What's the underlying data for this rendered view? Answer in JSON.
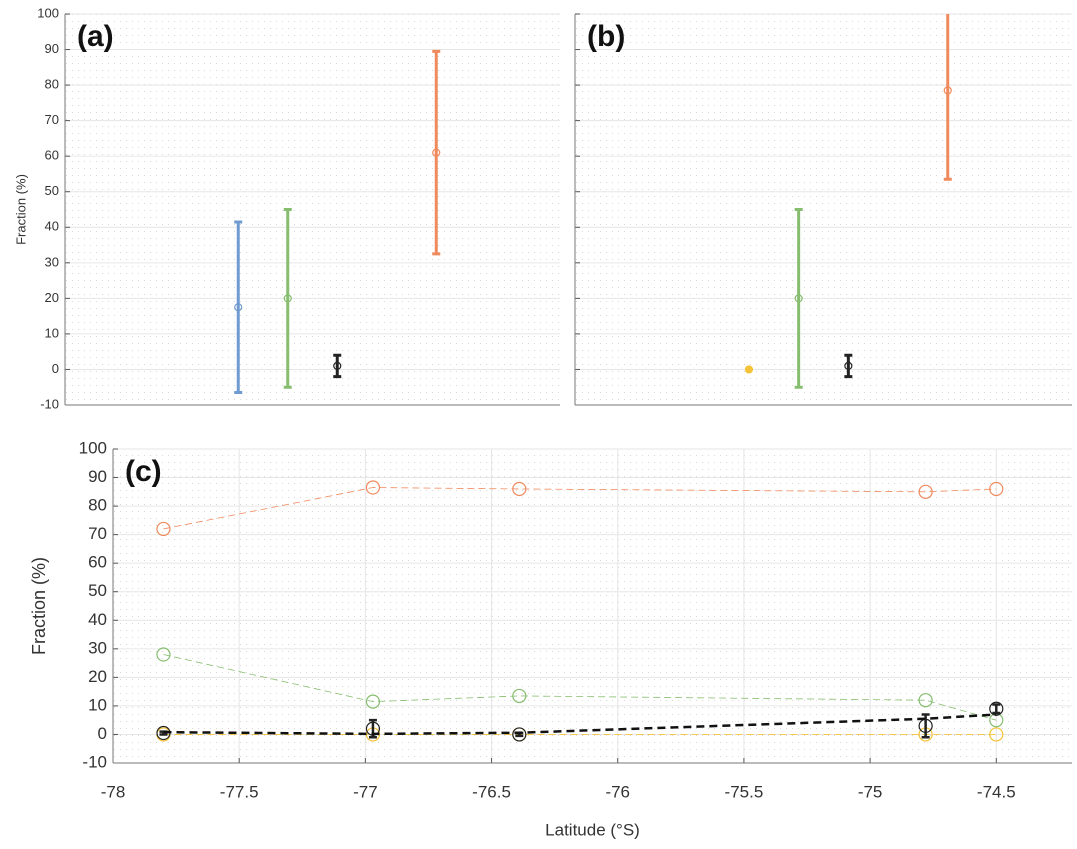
{
  "chart_data": [
    {
      "type": "errorbar",
      "title": "(a)",
      "ylabel": "Fraction (%)",
      "xlim": [
        0,
        10
      ],
      "ylim": [
        -10,
        100
      ],
      "yticks": [
        -10,
        0,
        10,
        20,
        30,
        40,
        50,
        60,
        70,
        80,
        90,
        100
      ],
      "grid": true,
      "series": [
        {
          "color": "#6f9bd1",
          "x": [
            3.5
          ],
          "values": [
            17.5
          ],
          "errors": [
            24
          ]
        },
        {
          "color": "#86bd6e",
          "x": [
            4.5
          ],
          "values": [
            20
          ],
          "errors": [
            25
          ]
        },
        {
          "color": "#222222",
          "x": [
            5.5
          ],
          "values": [
            1
          ],
          "errors": [
            3
          ]
        },
        {
          "color": "#f08a5d",
          "x": [
            7.5
          ],
          "values": [
            61
          ],
          "errors": [
            28.5
          ]
        }
      ]
    },
    {
      "type": "errorbar",
      "title": "(b)",
      "ytick_labels": false,
      "xlim": [
        0,
        10
      ],
      "ylim": [
        -10,
        100
      ],
      "yticks": [
        -10,
        0,
        10,
        20,
        30,
        40,
        50,
        60,
        70,
        80,
        90,
        100
      ],
      "grid": true,
      "series": [
        {
          "color": "#f5c338",
          "x": [
            3.5
          ],
          "values": [
            0
          ],
          "filled": true
        },
        {
          "color": "#86bd6e",
          "x": [
            4.5
          ],
          "values": [
            20
          ],
          "errors": [
            25
          ]
        },
        {
          "color": "#222222",
          "x": [
            5.5
          ],
          "values": [
            1
          ],
          "errors": [
            3
          ]
        },
        {
          "color": "#f08a5d",
          "x": [
            7.5
          ],
          "values": [
            78.5
          ],
          "errors": [
            25
          ]
        }
      ]
    },
    {
      "type": "line",
      "title": "(c)",
      "xlabel": "Latitude (°S)",
      "ylabel": "Fraction (%)",
      "xlim": [
        -78,
        -74.2
      ],
      "xticks": [
        -78,
        -77.5,
        -77,
        -76.5,
        -76,
        -75.5,
        -75,
        -74.5
      ],
      "ylim": [
        -10,
        100
      ],
      "yticks": [
        -10,
        0,
        10,
        20,
        30,
        40,
        50,
        60,
        70,
        80,
        90,
        100
      ],
      "grid": true,
      "x": [
        -77.8,
        -76.97,
        -76.39,
        -74.78,
        -74.5
      ],
      "series": [
        {
          "color": "#f08a5d",
          "values": [
            72,
            86.5,
            86,
            85,
            86
          ],
          "line": "dashed",
          "marker": true
        },
        {
          "color": "#86bd6e",
          "values": [
            28,
            11.5,
            13.5,
            12,
            5
          ],
          "line": "dashed",
          "marker": true
        },
        {
          "color": "#f5c338",
          "values": [
            0,
            0,
            0,
            0,
            0
          ],
          "line": "dashed",
          "marker": true
        },
        {
          "color": "#222222",
          "values": [
            0.5,
            2,
            0,
            3,
            9
          ],
          "errors": [
            0.5,
            3,
            0.5,
            4,
            1.5
          ],
          "marker": true
        },
        {
          "color": "#111111",
          "values": [
            0.8,
            0.2,
            0.6,
            5.5,
            7
          ],
          "line": "bold-dashed"
        }
      ]
    }
  ]
}
